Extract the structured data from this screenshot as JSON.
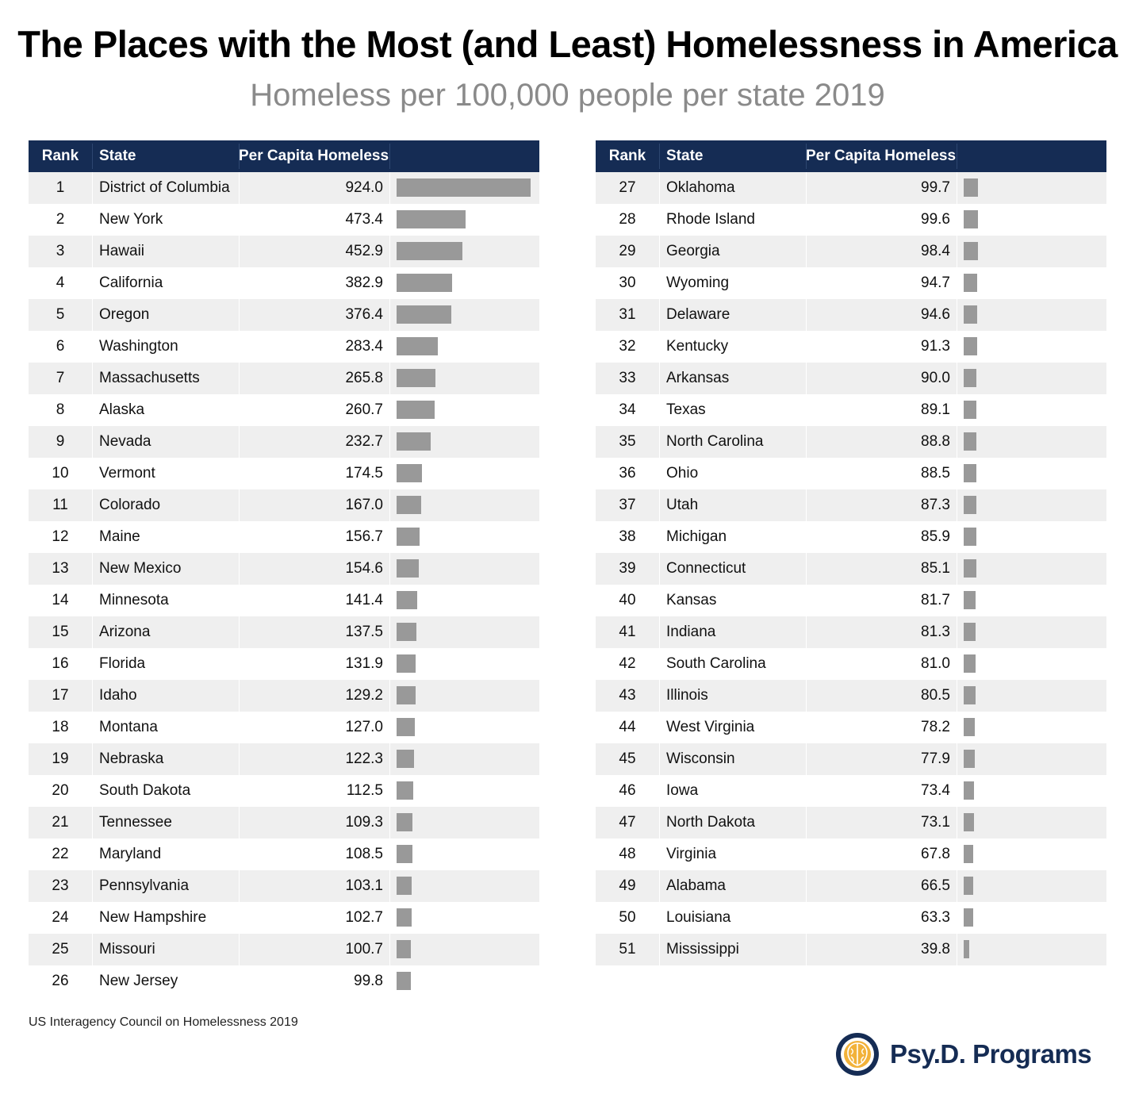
{
  "title": "The Places with the Most (and Least) Homelessness in America",
  "subtitle": "Homeless per 100,000 people per state 2019",
  "headers": {
    "rank": "Rank",
    "state": "State",
    "value": "Per Capita Homeless"
  },
  "source": "US Interagency Council on Homelessness 2019",
  "logo": {
    "text": "Psy.D. Programs",
    "name": "brain-icon"
  },
  "colors": {
    "header_bg": "#152c54",
    "bar": "#999999",
    "row_alt": "#efefef",
    "logo_gold": "#f2b23a"
  },
  "chart_data": {
    "type": "bar",
    "max_value": 924.0,
    "rows": [
      {
        "rank": "1",
        "state": "District of Columbia",
        "value": 924.0,
        "label": "924.0"
      },
      {
        "rank": "2",
        "state": "New York",
        "value": 473.4,
        "label": "473.4"
      },
      {
        "rank": "3",
        "state": "Hawaii",
        "value": 452.9,
        "label": "452.9"
      },
      {
        "rank": "4",
        "state": "California",
        "value": 382.9,
        "label": "382.9"
      },
      {
        "rank": "5",
        "state": "Oregon",
        "value": 376.4,
        "label": "376.4"
      },
      {
        "rank": "6",
        "state": "Washington",
        "value": 283.4,
        "label": "283.4"
      },
      {
        "rank": "7",
        "state": "Massachusetts",
        "value": 265.8,
        "label": "265.8"
      },
      {
        "rank": "8",
        "state": "Alaska",
        "value": 260.7,
        "label": "260.7"
      },
      {
        "rank": "9",
        "state": "Nevada",
        "value": 232.7,
        "label": "232.7"
      },
      {
        "rank": "10",
        "state": "Vermont",
        "value": 174.5,
        "label": "174.5"
      },
      {
        "rank": "11",
        "state": "Colorado",
        "value": 167.0,
        "label": "167.0"
      },
      {
        "rank": "12",
        "state": "Maine",
        "value": 156.7,
        "label": "156.7"
      },
      {
        "rank": "13",
        "state": "New Mexico",
        "value": 154.6,
        "label": "154.6"
      },
      {
        "rank": "14",
        "state": "Minnesota",
        "value": 141.4,
        "label": "141.4"
      },
      {
        "rank": "15",
        "state": "Arizona",
        "value": 137.5,
        "label": "137.5"
      },
      {
        "rank": "16",
        "state": "Florida",
        "value": 131.9,
        "label": "131.9"
      },
      {
        "rank": "17",
        "state": "Idaho",
        "value": 129.2,
        "label": "129.2"
      },
      {
        "rank": "18",
        "state": "Montana",
        "value": 127.0,
        "label": "127.0"
      },
      {
        "rank": "19",
        "state": "Nebraska",
        "value": 122.3,
        "label": "122.3"
      },
      {
        "rank": "20",
        "state": "South Dakota",
        "value": 112.5,
        "label": "112.5"
      },
      {
        "rank": "21",
        "state": "Tennessee",
        "value": 109.3,
        "label": "109.3"
      },
      {
        "rank": "22",
        "state": "Maryland",
        "value": 108.5,
        "label": "108.5"
      },
      {
        "rank": "23",
        "state": "Pennsylvania",
        "value": 103.1,
        "label": "103.1"
      },
      {
        "rank": "24",
        "state": "New Hampshire",
        "value": 102.7,
        "label": "102.7"
      },
      {
        "rank": "25",
        "state": "Missouri",
        "value": 100.7,
        "label": "100.7"
      },
      {
        "rank": "26",
        "state": "New Jersey",
        "value": 99.8,
        "label": "99.8"
      },
      {
        "rank": "27",
        "state": "Oklahoma",
        "value": 99.7,
        "label": "99.7"
      },
      {
        "rank": "28",
        "state": "Rhode Island",
        "value": 99.6,
        "label": "99.6"
      },
      {
        "rank": "29",
        "state": "Georgia",
        "value": 98.4,
        "label": "98.4"
      },
      {
        "rank": "30",
        "state": "Wyoming",
        "value": 94.7,
        "label": "94.7"
      },
      {
        "rank": "31",
        "state": "Delaware",
        "value": 94.6,
        "label": "94.6"
      },
      {
        "rank": "32",
        "state": "Kentucky",
        "value": 91.3,
        "label": "91.3"
      },
      {
        "rank": "33",
        "state": "Arkansas",
        "value": 90.0,
        "label": "90.0"
      },
      {
        "rank": "34",
        "state": "Texas",
        "value": 89.1,
        "label": "89.1"
      },
      {
        "rank": "35",
        "state": "North Carolina",
        "value": 88.8,
        "label": "88.8"
      },
      {
        "rank": "36",
        "state": "Ohio",
        "value": 88.5,
        "label": "88.5"
      },
      {
        "rank": "37",
        "state": "Utah",
        "value": 87.3,
        "label": "87.3"
      },
      {
        "rank": "38",
        "state": "Michigan",
        "value": 85.9,
        "label": "85.9"
      },
      {
        "rank": "39",
        "state": "Connecticut",
        "value": 85.1,
        "label": "85.1"
      },
      {
        "rank": "40",
        "state": "Kansas",
        "value": 81.7,
        "label": "81.7"
      },
      {
        "rank": "41",
        "state": "Indiana",
        "value": 81.3,
        "label": "81.3"
      },
      {
        "rank": "42",
        "state": "South Carolina",
        "value": 81.0,
        "label": "81.0"
      },
      {
        "rank": "43",
        "state": "Illinois",
        "value": 80.5,
        "label": "80.5"
      },
      {
        "rank": "44",
        "state": "West Virginia",
        "value": 78.2,
        "label": "78.2"
      },
      {
        "rank": "45",
        "state": "Wisconsin",
        "value": 77.9,
        "label": "77.9"
      },
      {
        "rank": "46",
        "state": "Iowa",
        "value": 73.4,
        "label": "73.4"
      },
      {
        "rank": "47",
        "state": "North Dakota",
        "value": 73.1,
        "label": "73.1"
      },
      {
        "rank": "48",
        "state": "Virginia",
        "value": 67.8,
        "label": "67.8"
      },
      {
        "rank": "49",
        "state": "Alabama",
        "value": 66.5,
        "label": "66.5"
      },
      {
        "rank": "50",
        "state": "Louisiana",
        "value": 63.3,
        "label": "63.3"
      },
      {
        "rank": "51",
        "state": "Mississippi",
        "value": 39.8,
        "label": "39.8"
      }
    ]
  }
}
